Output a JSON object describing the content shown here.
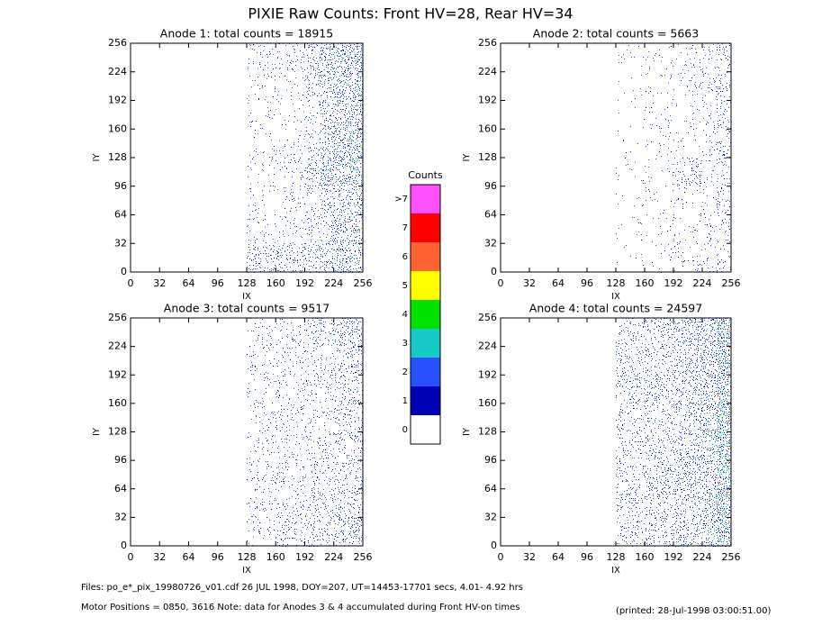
{
  "chart_data": {
    "type": "heatmap-dots",
    "title": "PIXIE Raw Counts:  Front HV=28, Rear HV=34",
    "colorbar": {
      "title": "Counts",
      "labels": [
        "0",
        "1",
        "2",
        "3",
        "4",
        "5",
        "6",
        "7",
        ">7"
      ],
      "colors": [
        "#ffffff",
        "#0000b4",
        "#2850ff",
        "#19c8c8",
        "#00e100",
        "#ffff00",
        "#ff6432",
        "#ff0000",
        "#ff50ff"
      ]
    },
    "panels": [
      {
        "title": "Anode 1: total counts = 18915",
        "xlabel": "IX",
        "ylabel": "IY",
        "xlim": [
          0,
          256
        ],
        "ylim": [
          0,
          256
        ],
        "xticks": [
          0,
          32,
          64,
          96,
          128,
          160,
          192,
          224,
          256
        ],
        "yticks": [
          0,
          32,
          64,
          96,
          128,
          160,
          192,
          224,
          256
        ],
        "occupancy": [
          [
            0,
            0,
            0,
            0,
            0,
            0,
            0,
            0,
            0.3,
            0.3,
            0.3,
            0.3,
            0.35,
            0.45,
            0.5,
            0.5
          ],
          [
            0,
            0,
            0,
            0,
            0,
            0,
            0,
            0,
            0.1,
            0.1,
            0.1,
            0.12,
            0.18,
            0.3,
            0.45,
            0.5
          ],
          [
            0,
            0,
            0,
            0,
            0,
            0,
            0,
            0,
            0.08,
            0.08,
            0.08,
            0.1,
            0.15,
            0.3,
            0.45,
            0.5
          ],
          [
            0,
            0,
            0,
            0,
            0,
            0,
            0,
            0,
            0.1,
            0.1,
            0.1,
            0.15,
            0.3,
            0.55,
            0.6,
            0.6
          ],
          [
            0,
            0,
            0,
            0,
            0,
            0,
            0,
            0,
            0.08,
            0.08,
            0.1,
            0.12,
            0.25,
            0.45,
            0.55,
            0.55
          ],
          [
            0,
            0,
            0,
            0,
            0,
            0,
            0,
            0,
            0.08,
            0.08,
            0.1,
            0.12,
            0.2,
            0.35,
            0.5,
            0.5
          ],
          [
            0,
            0,
            0,
            0,
            0,
            0,
            0,
            0,
            0.1,
            0.1,
            0.12,
            0.15,
            0.25,
            0.4,
            0.55,
            0.55
          ],
          [
            0,
            0,
            0,
            0,
            0,
            0,
            0,
            0,
            0.15,
            0.12,
            0.15,
            0.2,
            0.3,
            0.45,
            0.6,
            0.6
          ]
        ]
      },
      {
        "title": "Anode 2: total counts = 5663",
        "xlabel": "IX",
        "ylabel": "IY",
        "xlim": [
          0,
          256
        ],
        "ylim": [
          0,
          256
        ],
        "xticks": [
          0,
          32,
          64,
          96,
          128,
          160,
          192,
          224,
          256
        ],
        "yticks": [
          0,
          32,
          64,
          96,
          128,
          160,
          192,
          224,
          256
        ],
        "occupancy": [
          [
            0,
            0,
            0,
            0,
            0,
            0,
            0,
            0,
            0.03,
            0.06,
            0.06,
            0.07,
            0.08,
            0.1,
            0.15,
            0.25
          ],
          [
            0,
            0,
            0,
            0,
            0,
            0,
            0,
            0,
            0.03,
            0.04,
            0.04,
            0.05,
            0.06,
            0.08,
            0.12,
            0.2
          ],
          [
            0,
            0,
            0,
            0,
            0,
            0,
            0,
            0,
            0.03,
            0.04,
            0.04,
            0.05,
            0.08,
            0.1,
            0.12,
            0.2
          ],
          [
            0,
            0,
            0,
            0,
            0,
            0,
            0,
            0,
            0.03,
            0.04,
            0.05,
            0.06,
            0.2,
            0.3,
            0.12,
            0.2
          ],
          [
            0,
            0,
            0,
            0,
            0,
            0,
            0,
            0,
            0.03,
            0.04,
            0.04,
            0.05,
            0.07,
            0.08,
            0.12,
            0.2
          ],
          [
            0,
            0,
            0,
            0,
            0,
            0,
            0,
            0,
            0.03,
            0.04,
            0.04,
            0.05,
            0.06,
            0.08,
            0.12,
            0.2
          ],
          [
            0,
            0,
            0,
            0,
            0,
            0,
            0,
            0,
            0.03,
            0.05,
            0.05,
            0.06,
            0.07,
            0.1,
            0.14,
            0.25
          ],
          [
            0,
            0,
            0,
            0,
            0,
            0,
            0,
            0,
            0.04,
            0.06,
            0.06,
            0.07,
            0.08,
            0.12,
            0.15,
            0.25
          ]
        ]
      },
      {
        "title": "Anode 3: total counts = 9517",
        "xlabel": "IX",
        "ylabel": "IY",
        "xlim": [
          0,
          256
        ],
        "ylim": [
          0,
          256
        ],
        "xticks": [
          0,
          32,
          64,
          96,
          128,
          160,
          192,
          224,
          256
        ],
        "yticks": [
          0,
          32,
          64,
          96,
          128,
          160,
          192,
          224,
          256
        ],
        "occupancy": [
          [
            0,
            0,
            0,
            0,
            0,
            0,
            0,
            0,
            0.15,
            0.15,
            0.18,
            0.2,
            0.2,
            0.25,
            0.35,
            0.45
          ],
          [
            0,
            0,
            0,
            0,
            0,
            0,
            0,
            0,
            0.15,
            0.15,
            0.18,
            0.2,
            0.2,
            0.25,
            0.3,
            0.35
          ],
          [
            0,
            0,
            0,
            0,
            0,
            0,
            0,
            0,
            0.14,
            0.15,
            0.17,
            0.18,
            0.2,
            0.22,
            0.28,
            0.3
          ],
          [
            0,
            0,
            0,
            0,
            0,
            0,
            0,
            0,
            0.14,
            0.15,
            0.17,
            0.18,
            0.2,
            0.22,
            0.28,
            0.3
          ],
          [
            0,
            0,
            0,
            0,
            0,
            0,
            0,
            0,
            0.12,
            0.14,
            0.15,
            0.17,
            0.18,
            0.2,
            0.25,
            0.3
          ],
          [
            0,
            0,
            0,
            0,
            0,
            0,
            0,
            0,
            0.12,
            0.14,
            0.15,
            0.17,
            0.18,
            0.2,
            0.25,
            0.3
          ],
          [
            0,
            0,
            0,
            0,
            0,
            0,
            0,
            0,
            0.12,
            0.14,
            0.15,
            0.16,
            0.18,
            0.2,
            0.28,
            0.35
          ],
          [
            0,
            0,
            0,
            0,
            0,
            0,
            0,
            0,
            0.14,
            0.15,
            0.16,
            0.18,
            0.2,
            0.22,
            0.3,
            0.4
          ]
        ]
      },
      {
        "title": "Anode 4: total counts = 24597",
        "xlabel": "IX",
        "ylabel": "IY",
        "xlim": [
          0,
          256
        ],
        "ylim": [
          0,
          256
        ],
        "xticks": [
          0,
          32,
          64,
          96,
          128,
          160,
          192,
          224,
          256
        ],
        "yticks": [
          0,
          32,
          64,
          96,
          128,
          160,
          192,
          224,
          256
        ],
        "occupancy": [
          [
            0,
            0,
            0,
            0,
            0,
            0,
            0,
            0,
            0.25,
            0.28,
            0.3,
            0.32,
            0.38,
            0.45,
            0.55,
            0.85
          ],
          [
            0,
            0,
            0,
            0,
            0,
            0,
            0,
            0,
            0.25,
            0.25,
            0.3,
            0.3,
            0.35,
            0.42,
            0.55,
            0.85
          ],
          [
            0,
            0,
            0,
            0,
            0,
            0,
            0,
            0,
            0.22,
            0.25,
            0.28,
            0.3,
            0.35,
            0.4,
            0.5,
            0.8
          ],
          [
            0,
            0,
            0,
            0,
            0,
            0,
            0,
            0,
            0.22,
            0.25,
            0.28,
            0.3,
            0.35,
            0.4,
            0.5,
            0.8
          ],
          [
            0,
            0,
            0,
            0,
            0,
            0,
            0,
            0,
            0.22,
            0.25,
            0.28,
            0.3,
            0.35,
            0.4,
            0.5,
            0.8
          ],
          [
            0,
            0,
            0,
            0,
            0,
            0,
            0,
            0,
            0.22,
            0.25,
            0.28,
            0.3,
            0.35,
            0.4,
            0.5,
            0.8
          ],
          [
            0,
            0,
            0,
            0,
            0,
            0,
            0,
            0,
            0.25,
            0.25,
            0.3,
            0.3,
            0.35,
            0.42,
            0.52,
            0.8
          ],
          [
            0,
            0,
            0,
            0,
            0,
            0,
            0,
            0,
            0.28,
            0.28,
            0.32,
            0.32,
            0.38,
            0.45,
            0.55,
            0.85
          ]
        ]
      }
    ],
    "footer": [
      "Files: po_e*_pix_19980726_v01.cdf    26 JUL 1998, DOY=207, UT=14453-17701 secs,  4.01- 4.92 hrs",
      "Motor Positions = 0850, 3616   Note: data for Anodes 3 & 4 accumulated during Front HV-on times"
    ],
    "printed": "(printed: 28-Jul-1998 03:00:51.00)"
  }
}
